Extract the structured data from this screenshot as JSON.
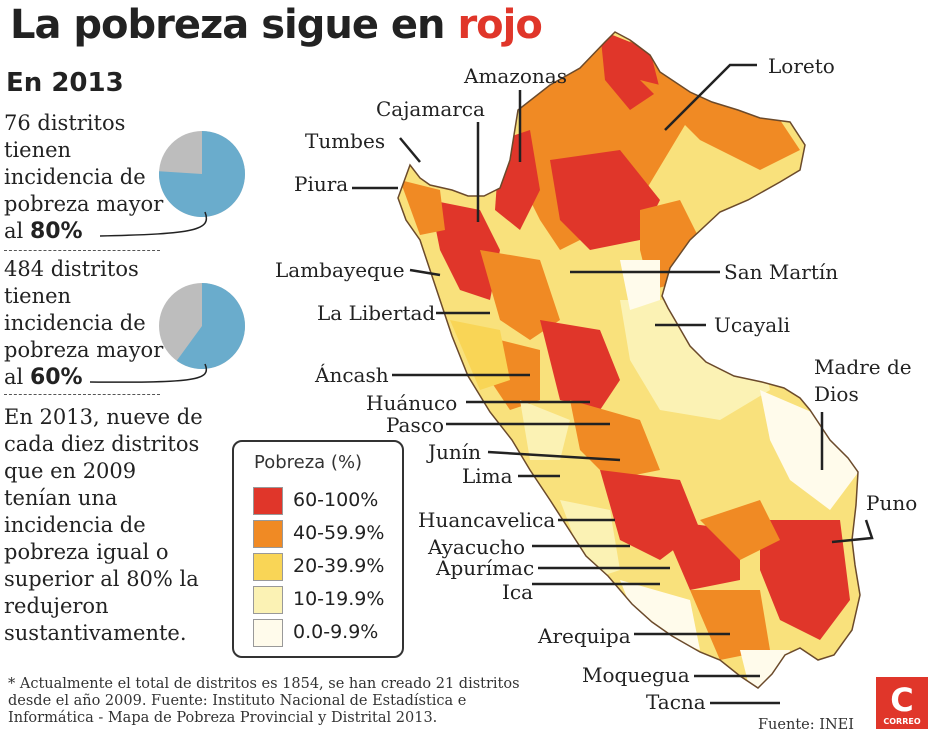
{
  "title": {
    "prefix": "La pobreza sigue en",
    "highlight": "rojo"
  },
  "year_heading": "En 2013",
  "stats": [
    {
      "text_before": "76 distritos tienen incidencia de pobreza mayor al",
      "bold": "80%",
      "pie_fraction": 0.76
    },
    {
      "text_before": "484 distritos tienen incidencia de pobreza mayor al",
      "bold": "60%",
      "pie_fraction": 0.6
    }
  ],
  "paragraph": "En 2013, nueve de cada diez distritos que en 2009 tenían una incidencia de pobreza igual o superior al 80% la redujeron sustantivamente.",
  "legend": {
    "title": "Pobreza (%)",
    "items": [
      {
        "range": "60-100%",
        "color": "#e0362a"
      },
      {
        "range": "40-59.9%",
        "color": "#f08a24"
      },
      {
        "range": "20-39.9%",
        "color": "#f9d556"
      },
      {
        "range": "10-19.9%",
        "color": "#fbf2b4"
      },
      {
        "range": "0.0-9.9%",
        "color": "#fffbeb"
      }
    ]
  },
  "regions": [
    "Amazonas",
    "Loreto",
    "Cajamarca",
    "Tumbes",
    "Piura",
    "Lambayeque",
    "San Martín",
    "La Libertad",
    "Ucayali",
    "Áncash",
    "Madre de Dios",
    "Huánuco",
    "Pasco",
    "Junín",
    "Lima",
    "Puno",
    "Huancavelica",
    "Ayacucho",
    "Apurímac",
    "Ica",
    "Arequipa",
    "Moquegua",
    "Tacna"
  ],
  "footnote": "* Actualmente el total de distritos es 1854, se han creado 21 distritos desde el año 2009. Fuente: Instituto Nacional de Estadística e Informática - Mapa de Pobreza Provincial y Distrital 2013.",
  "source": "Fuente: INEI",
  "logo": {
    "letter": "C",
    "text": "CORREO",
    "color": "#e0362a"
  },
  "colors": {
    "pie_main": "#6aaccc",
    "pie_rest": "#bdbdbd",
    "accent": "#e0362a"
  }
}
